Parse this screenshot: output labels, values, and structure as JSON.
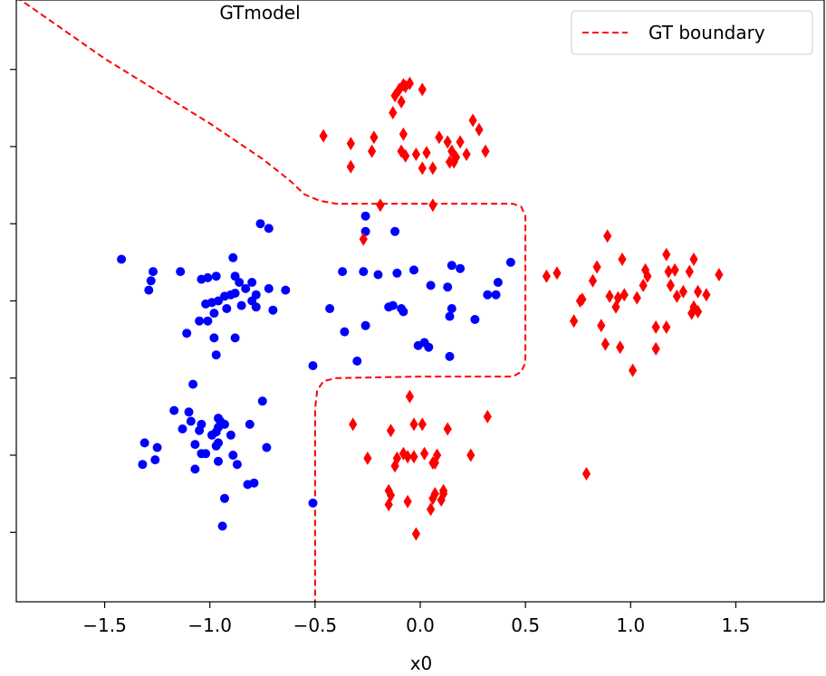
{
  "chart_data": {
    "type": "scatter",
    "title": "GTmodel",
    "xlabel": "x0",
    "ylabel": "",
    "xlim": [
      -1.92,
      1.92
    ],
    "ylim": [
      -1.95,
      1.95
    ],
    "x_ticks": [
      -1.5,
      -1.0,
      -0.5,
      0.0,
      0.5,
      1.0,
      1.5
    ],
    "x_tick_labels": [
      "−1.5",
      "−1.0",
      "−0.5",
      "0.0",
      "0.5",
      "1.0",
      "1.5"
    ],
    "y_ticks": [
      -1.5,
      -1.0,
      -0.5,
      0.0,
      0.5,
      1.0,
      1.5
    ],
    "legend_position": "top-right",
    "grid": false,
    "series": [
      {
        "marker": "circle",
        "color": "#0000ff",
        "points": [
          [
            -1.42,
            0.27
          ],
          [
            -1.27,
            0.19
          ],
          [
            -1.28,
            0.13
          ],
          [
            -1.29,
            0.07
          ],
          [
            -1.14,
            0.19
          ],
          [
            -1.04,
            0.14
          ],
          [
            -1.01,
            0.15
          ],
          [
            -0.97,
            0.16
          ],
          [
            -0.88,
            0.16
          ],
          [
            -0.86,
            0.12
          ],
          [
            -0.8,
            0.12
          ],
          [
            -0.83,
            0.08
          ],
          [
            -0.72,
            0.08
          ],
          [
            -0.78,
            0.04
          ],
          [
            -0.76,
            0.5
          ],
          [
            -0.72,
            0.47
          ],
          [
            -0.89,
            0.28
          ],
          [
            -0.9,
            0.04
          ],
          [
            -0.93,
            0.03
          ],
          [
            -0.96,
            0.0
          ],
          [
            -0.99,
            -0.01
          ],
          [
            -1.02,
            -0.02
          ],
          [
            -0.88,
            0.05
          ],
          [
            -0.85,
            -0.03
          ],
          [
            -0.8,
            0.0
          ],
          [
            -0.92,
            -0.05
          ],
          [
            -0.98,
            -0.08
          ],
          [
            -1.01,
            -0.13
          ],
          [
            -1.05,
            -0.13
          ],
          [
            -1.11,
            -0.21
          ],
          [
            -0.98,
            -0.24
          ],
          [
            -0.88,
            -0.24
          ],
          [
            -0.97,
            -0.35
          ],
          [
            -0.78,
            -0.04
          ],
          [
            -0.7,
            -0.06
          ],
          [
            -0.64,
            0.07
          ],
          [
            -1.08,
            -0.54
          ],
          [
            -1.17,
            -0.71
          ],
          [
            -1.1,
            -0.72
          ],
          [
            -1.09,
            -0.78
          ],
          [
            -1.13,
            -0.83
          ],
          [
            -1.04,
            -0.8
          ],
          [
            -1.05,
            -0.84
          ],
          [
            -0.96,
            -0.76
          ],
          [
            -0.95,
            -0.78
          ],
          [
            -0.93,
            -0.8
          ],
          [
            -0.96,
            -0.82
          ],
          [
            -0.97,
            -0.85
          ],
          [
            -0.99,
            -0.87
          ],
          [
            -0.9,
            -0.87
          ],
          [
            -1.31,
            -0.92
          ],
          [
            -1.25,
            -0.95
          ],
          [
            -1.32,
            -1.06
          ],
          [
            -1.26,
            -1.03
          ],
          [
            -1.07,
            -0.93
          ],
          [
            -1.04,
            -0.99
          ],
          [
            -1.02,
            -0.99
          ],
          [
            -0.97,
            -0.94
          ],
          [
            -0.96,
            -0.92
          ],
          [
            -0.89,
            -1.0
          ],
          [
            -0.96,
            -1.04
          ],
          [
            -1.07,
            -1.09
          ],
          [
            -0.87,
            -1.06
          ],
          [
            -0.82,
            -1.19
          ],
          [
            -0.79,
            -1.18
          ],
          [
            -0.93,
            -1.28
          ],
          [
            -0.94,
            -1.46
          ],
          [
            -0.75,
            -0.65
          ],
          [
            -0.81,
            -0.8
          ],
          [
            -0.73,
            -0.95
          ],
          [
            -0.26,
            0.45
          ],
          [
            -0.26,
            0.55
          ],
          [
            -0.12,
            0.45
          ],
          [
            -0.37,
            0.19
          ],
          [
            -0.27,
            0.19
          ],
          [
            -0.2,
            0.17
          ],
          [
            -0.11,
            0.18
          ],
          [
            -0.03,
            0.2
          ],
          [
            0.15,
            0.23
          ],
          [
            0.19,
            0.21
          ],
          [
            -0.43,
            -0.05
          ],
          [
            -0.36,
            -0.2
          ],
          [
            -0.26,
            -0.16
          ],
          [
            -0.15,
            -0.04
          ],
          [
            -0.13,
            -0.03
          ],
          [
            -0.09,
            -0.05
          ],
          [
            -0.08,
            -0.07
          ],
          [
            0.05,
            0.1
          ],
          [
            0.13,
            0.09
          ],
          [
            0.15,
            -0.05
          ],
          [
            0.14,
            -0.1
          ],
          [
            0.14,
            -0.36
          ],
          [
            -0.01,
            -0.29
          ],
          [
            0.02,
            -0.27
          ],
          [
            0.04,
            -0.3
          ],
          [
            -0.3,
            -0.39
          ],
          [
            -0.51,
            -0.42
          ],
          [
            0.26,
            -0.12
          ],
          [
            0.32,
            0.04
          ],
          [
            0.36,
            0.04
          ],
          [
            0.37,
            0.12
          ],
          [
            0.43,
            0.25
          ],
          [
            -0.51,
            -1.31
          ]
        ]
      },
      {
        "marker": "diamond",
        "color": "#ff0000",
        "points": [
          [
            -0.46,
            1.07
          ],
          [
            -0.33,
            1.02
          ],
          [
            -0.33,
            0.87
          ],
          [
            -0.22,
            1.06
          ],
          [
            -0.23,
            0.97
          ],
          [
            -0.13,
            1.22
          ],
          [
            -0.12,
            1.33
          ],
          [
            -0.1,
            1.37
          ],
          [
            -0.09,
            1.29
          ],
          [
            -0.08,
            1.4
          ],
          [
            -0.05,
            1.41
          ],
          [
            -0.07,
            1.39
          ],
          [
            -0.08,
            1.08
          ],
          [
            -0.09,
            0.97
          ],
          [
            -0.07,
            0.94
          ],
          [
            -0.02,
            0.95
          ],
          [
            0.01,
            1.37
          ],
          [
            0.03,
            0.96
          ],
          [
            0.01,
            0.86
          ],
          [
            0.06,
            0.86
          ],
          [
            0.09,
            1.06
          ],
          [
            0.13,
            1.03
          ],
          [
            0.15,
            0.97
          ],
          [
            0.16,
            0.9
          ],
          [
            0.19,
            1.03
          ],
          [
            0.17,
            0.93
          ],
          [
            0.22,
            0.95
          ],
          [
            0.25,
            1.17
          ],
          [
            0.28,
            1.11
          ],
          [
            0.31,
            0.97
          ],
          [
            -0.19,
            0.62
          ],
          [
            -0.27,
            0.4
          ],
          [
            0.06,
            0.62
          ],
          [
            0.14,
            0.9
          ],
          [
            0.6,
            0.16
          ],
          [
            0.65,
            0.18
          ],
          [
            0.73,
            -0.13
          ],
          [
            0.76,
            0.0
          ],
          [
            0.77,
            0.01
          ],
          [
            0.84,
            0.22
          ],
          [
            0.82,
            0.13
          ],
          [
            0.86,
            -0.16
          ],
          [
            0.9,
            0.03
          ],
          [
            0.88,
            -0.28
          ],
          [
            0.93,
            -0.04
          ],
          [
            0.94,
            0.02
          ],
          [
            0.97,
            0.04
          ],
          [
            0.95,
            -0.3
          ],
          [
            0.89,
            0.42
          ],
          [
            0.96,
            0.27
          ],
          [
            1.01,
            -0.45
          ],
          [
            1.03,
            0.02
          ],
          [
            1.06,
            0.1
          ],
          [
            1.08,
            0.16
          ],
          [
            1.07,
            0.2
          ],
          [
            1.12,
            -0.17
          ],
          [
            1.12,
            -0.31
          ],
          [
            1.17,
            -0.17
          ],
          [
            1.17,
            0.3
          ],
          [
            1.22,
            0.03
          ],
          [
            1.21,
            0.2
          ],
          [
            1.25,
            0.06
          ],
          [
            1.28,
            0.19
          ],
          [
            1.29,
            -0.08
          ],
          [
            1.3,
            0.27
          ],
          [
            1.3,
            -0.04
          ],
          [
            1.32,
            0.06
          ],
          [
            1.32,
            -0.07
          ],
          [
            1.36,
            0.04
          ],
          [
            1.42,
            0.17
          ],
          [
            1.18,
            0.19
          ],
          [
            1.19,
            0.1
          ],
          [
            -0.32,
            -0.8
          ],
          [
            -0.25,
            -1.02
          ],
          [
            -0.11,
            -1.02
          ],
          [
            -0.08,
            -0.99
          ],
          [
            -0.06,
            -1.01
          ],
          [
            -0.05,
            -0.62
          ],
          [
            -0.03,
            -0.8
          ],
          [
            -0.03,
            -1.01
          ],
          [
            0.01,
            -0.8
          ],
          [
            0.02,
            -0.99
          ],
          [
            -0.14,
            -0.84
          ],
          [
            -0.12,
            -1.07
          ],
          [
            0.06,
            -1.05
          ],
          [
            0.07,
            -1.05
          ],
          [
            0.08,
            -1.0
          ],
          [
            0.13,
            -0.83
          ],
          [
            0.11,
            -1.23
          ],
          [
            0.06,
            -1.28
          ],
          [
            0.05,
            -1.35
          ],
          [
            -0.02,
            -1.51
          ],
          [
            0.11,
            -1.25
          ],
          [
            0.1,
            -1.29
          ],
          [
            0.24,
            -1.0
          ],
          [
            -0.15,
            -1.23
          ],
          [
            -0.15,
            -1.32
          ],
          [
            -0.06,
            -1.3
          ],
          [
            0.07,
            -1.25
          ],
          [
            -0.14,
            -1.26
          ],
          [
            0.32,
            -0.75
          ],
          [
            0.79,
            -1.12
          ]
        ]
      }
    ],
    "gt_boundary": {
      "name": "GT boundary",
      "style": "dashed",
      "color": "#ff0000",
      "upper": [
        [
          -1.92,
          1.97
        ],
        [
          -1.5,
          1.57
        ],
        [
          -1.0,
          1.15
        ],
        [
          -0.75,
          0.92
        ],
        [
          -0.62,
          0.78
        ],
        [
          -0.55,
          0.69
        ],
        [
          -0.48,
          0.65
        ],
        [
          -0.4,
          0.63
        ],
        [
          0.0,
          0.63
        ],
        [
          0.44,
          0.63
        ],
        [
          0.48,
          0.61
        ],
        [
          0.5,
          0.55
        ],
        [
          0.5,
          0.2
        ],
        [
          0.5,
          -0.2
        ],
        [
          0.5,
          -0.4
        ],
        [
          0.48,
          -0.46
        ],
        [
          0.44,
          -0.49
        ],
        [
          0.0,
          -0.49
        ],
        [
          -0.4,
          -0.5
        ],
        [
          -0.46,
          -0.52
        ],
        [
          -0.49,
          -0.58
        ],
        [
          -0.5,
          -0.7
        ],
        [
          -0.5,
          -1.3
        ],
        [
          -0.5,
          -1.95
        ]
      ]
    }
  }
}
